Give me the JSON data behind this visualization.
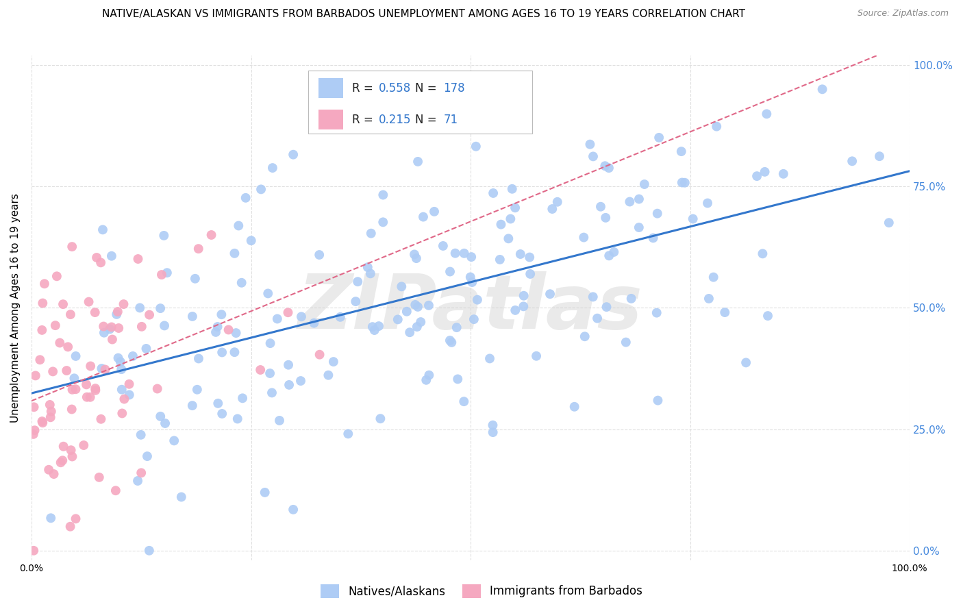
{
  "title": "NATIVE/ALASKAN VS IMMIGRANTS FROM BARBADOS UNEMPLOYMENT AMONG AGES 16 TO 19 YEARS CORRELATION CHART",
  "source": "Source: ZipAtlas.com",
  "ylabel": "Unemployment Among Ages 16 to 19 years",
  "xmin": 0.0,
  "xmax": 1.0,
  "ymin": 0.0,
  "ymax": 1.0,
  "xticks": [
    0.0,
    0.25,
    0.5,
    0.75,
    1.0
  ],
  "xtick_labels": [
    "0.0%",
    "",
    "",
    "",
    "100.0%"
  ],
  "yticks": [
    0.0,
    0.25,
    0.5,
    0.75,
    1.0
  ],
  "ytick_labels": [
    "0.0%",
    "25.0%",
    "50.0%",
    "75.0%",
    "100.0%"
  ],
  "native_R": 0.558,
  "native_N": 178,
  "barbados_R": 0.215,
  "barbados_N": 71,
  "native_color": "#aeccf5",
  "barbados_color": "#f5a8c0",
  "native_line_color": "#3377cc",
  "barbados_line_color": "#e06888",
  "watermark": "ZIPatlas",
  "background_color": "#ffffff",
  "grid_color": "#e0e0e0",
  "right_tick_color": "#4488dd",
  "title_fontsize": 11,
  "axis_label_fontsize": 11,
  "tick_label_fontsize": 10,
  "native_seed": 12,
  "barbados_seed": 99
}
